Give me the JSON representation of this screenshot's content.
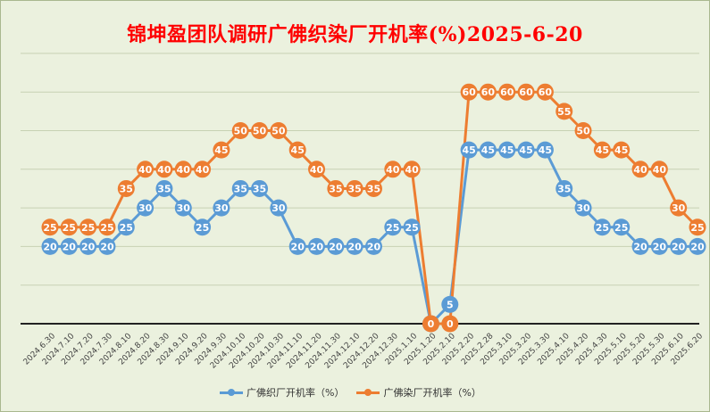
{
  "chart_data": {
    "type": "line",
    "title": "锦坤盈团队调研广佛织染厂开机率(%)2025-6-20",
    "x": [
      "2024.6.30",
      "2024.7.10",
      "2024.7.20",
      "2024.7.30",
      "2024.8.10",
      "2024.8.20",
      "2024.8.30",
      "2024.9.10",
      "2024.9.20",
      "2024.9.30",
      "2024.10.10",
      "2024.10.20",
      "2024.10.30",
      "2024.11.10",
      "2024.11.20",
      "2024.11.30",
      "2024.12.10",
      "2024.12.20",
      "2024.12.30",
      "2025.1.10",
      "2025.1.20",
      "2025.2.10",
      "2025.2.20",
      "2025.2.28",
      "2025.3.10",
      "2025.3.20",
      "2025.3.30",
      "2025.4.10",
      "2025.4.20",
      "2025.4.30",
      "2025.5.10",
      "2025.5.20",
      "2025.5.30",
      "2025.6.10",
      "2025.6.20"
    ],
    "series": [
      {
        "name": "广佛织厂开机率（%）",
        "color": "#5b9bd5",
        "values": [
          20,
          20,
          20,
          20,
          25,
          30,
          35,
          30,
          25,
          30,
          35,
          35,
          30,
          20,
          20,
          20,
          20,
          20,
          25,
          25,
          0,
          5,
          45,
          45,
          45,
          45,
          45,
          35,
          30,
          25,
          25,
          20,
          20,
          20,
          20
        ]
      },
      {
        "name": "广佛染厂开机率（%）",
        "color": "#ed7d31",
        "values": [
          25,
          25,
          25,
          25,
          35,
          40,
          40,
          40,
          40,
          45,
          50,
          50,
          50,
          45,
          40,
          35,
          35,
          35,
          40,
          40,
          0,
          0,
          60,
          60,
          60,
          60,
          60,
          55,
          50,
          45,
          45,
          40,
          40,
          30,
          25
        ]
      }
    ],
    "ylim": [
      0,
      70
    ],
    "grid": true,
    "legend": "bottom"
  }
}
